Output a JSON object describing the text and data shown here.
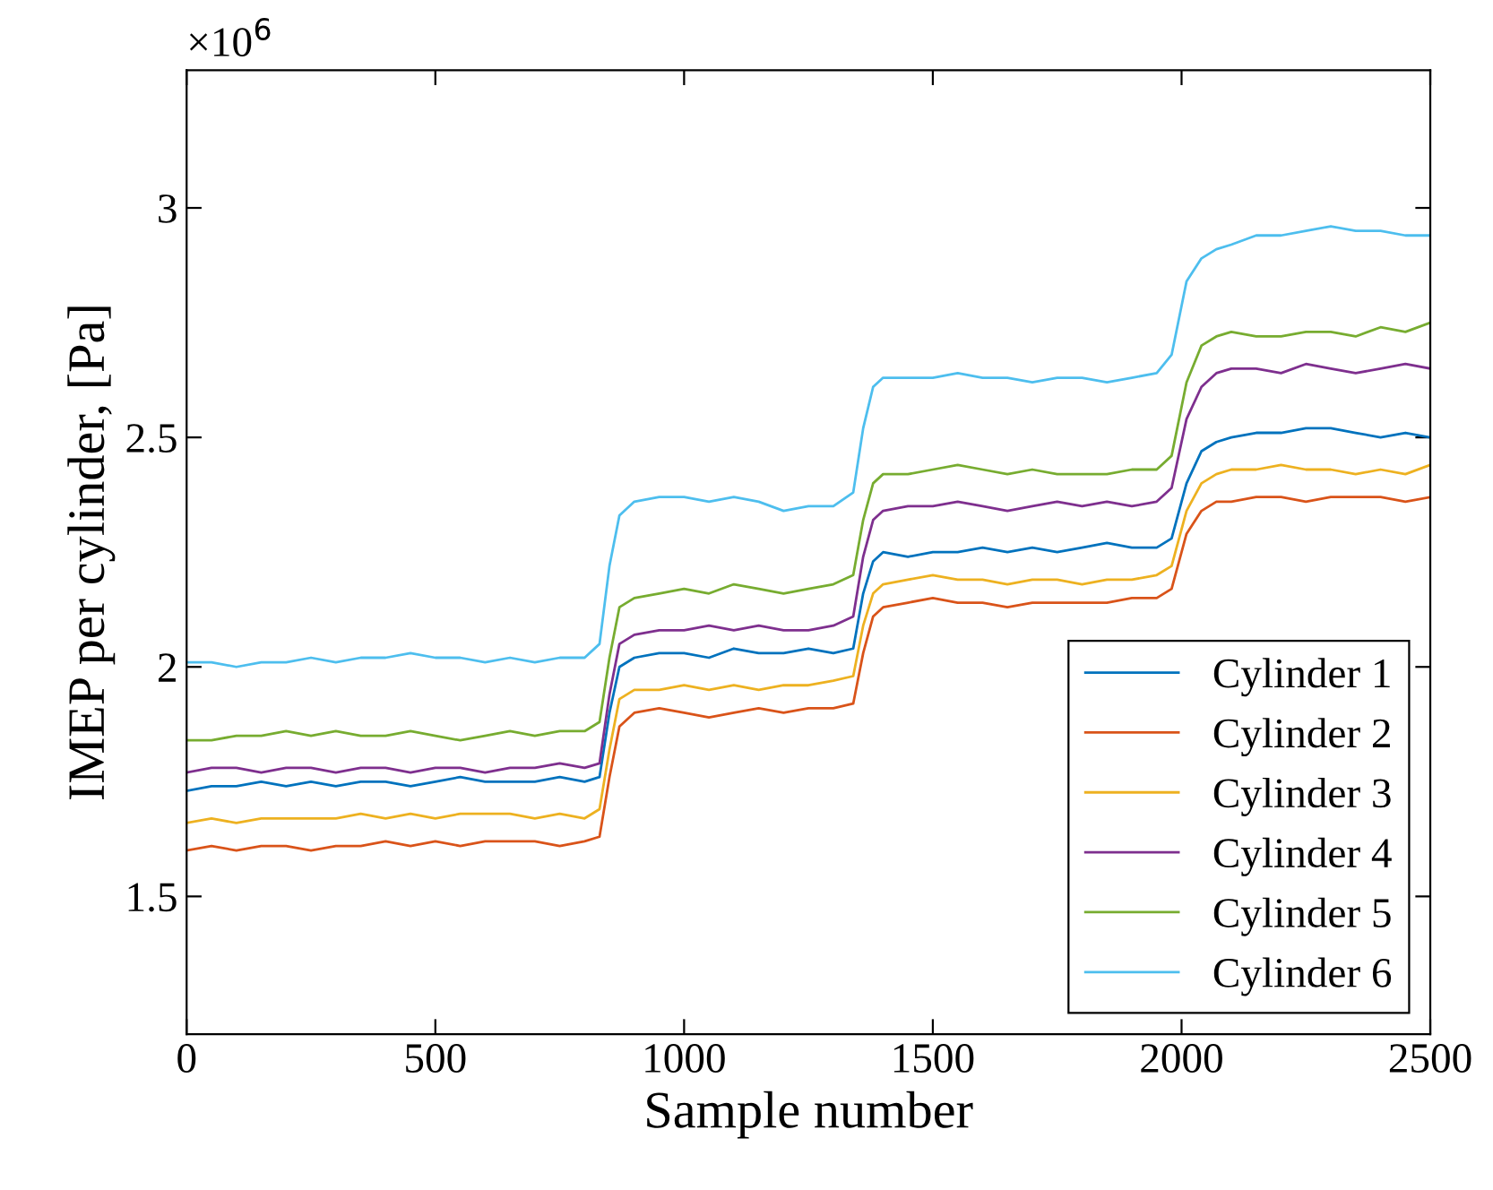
{
  "chart_data": {
    "type": "line",
    "xlabel": "Sample number",
    "ylabel": "IMEP per cylinder, [Pa]",
    "annotations": [
      "×10$^{6}$"
    ],
    "x": [
      0,
      50,
      100,
      150,
      200,
      250,
      300,
      350,
      400,
      450,
      500,
      550,
      600,
      650,
      700,
      750,
      800,
      830,
      850,
      870,
      900,
      950,
      1000,
      1050,
      1100,
      1150,
      1200,
      1250,
      1300,
      1340,
      1360,
      1380,
      1400,
      1450,
      1500,
      1550,
      1600,
      1650,
      1700,
      1750,
      1800,
      1850,
      1900,
      1950,
      1980,
      2010,
      2040,
      2070,
      2100,
      2150,
      2200,
      2250,
      2300,
      2350,
      2400,
      2450,
      2500
    ],
    "series": [
      {
        "name": "Cylinder 1",
        "color": "#0072bd",
        "values": [
          1.73,
          1.74,
          1.74,
          1.75,
          1.74,
          1.75,
          1.74,
          1.75,
          1.75,
          1.74,
          1.75,
          1.76,
          1.75,
          1.75,
          1.75,
          1.76,
          1.75,
          1.76,
          1.9,
          2.0,
          2.02,
          2.03,
          2.03,
          2.02,
          2.04,
          2.03,
          2.03,
          2.04,
          2.03,
          2.04,
          2.16,
          2.23,
          2.25,
          2.24,
          2.25,
          2.25,
          2.26,
          2.25,
          2.26,
          2.25,
          2.26,
          2.27,
          2.26,
          2.26,
          2.28,
          2.4,
          2.47,
          2.49,
          2.5,
          2.51,
          2.51,
          2.52,
          2.52,
          2.51,
          2.5,
          2.51,
          2.5
        ]
      },
      {
        "name": "Cylinder 2",
        "color": "#d95319",
        "values": [
          1.6,
          1.61,
          1.6,
          1.61,
          1.61,
          1.6,
          1.61,
          1.61,
          1.62,
          1.61,
          1.62,
          1.61,
          1.62,
          1.62,
          1.62,
          1.61,
          1.62,
          1.63,
          1.76,
          1.87,
          1.9,
          1.91,
          1.9,
          1.89,
          1.9,
          1.91,
          1.9,
          1.91,
          1.91,
          1.92,
          2.03,
          2.11,
          2.13,
          2.14,
          2.15,
          2.14,
          2.14,
          2.13,
          2.14,
          2.14,
          2.14,
          2.14,
          2.15,
          2.15,
          2.17,
          2.29,
          2.34,
          2.36,
          2.36,
          2.37,
          2.37,
          2.36,
          2.37,
          2.37,
          2.37,
          2.36,
          2.37
        ]
      },
      {
        "name": "Cylinder 3",
        "color": "#edb120",
        "values": [
          1.66,
          1.67,
          1.66,
          1.67,
          1.67,
          1.67,
          1.67,
          1.68,
          1.67,
          1.68,
          1.67,
          1.68,
          1.68,
          1.68,
          1.67,
          1.68,
          1.67,
          1.69,
          1.82,
          1.93,
          1.95,
          1.95,
          1.96,
          1.95,
          1.96,
          1.95,
          1.96,
          1.96,
          1.97,
          1.98,
          2.09,
          2.16,
          2.18,
          2.19,
          2.2,
          2.19,
          2.19,
          2.18,
          2.19,
          2.19,
          2.18,
          2.19,
          2.19,
          2.2,
          2.22,
          2.34,
          2.4,
          2.42,
          2.43,
          2.43,
          2.44,
          2.43,
          2.43,
          2.42,
          2.43,
          2.42,
          2.44
        ]
      },
      {
        "name": "Cylinder 4",
        "color": "#7e2f8e",
        "values": [
          1.77,
          1.78,
          1.78,
          1.77,
          1.78,
          1.78,
          1.77,
          1.78,
          1.78,
          1.77,
          1.78,
          1.78,
          1.77,
          1.78,
          1.78,
          1.79,
          1.78,
          1.79,
          1.94,
          2.05,
          2.07,
          2.08,
          2.08,
          2.09,
          2.08,
          2.09,
          2.08,
          2.08,
          2.09,
          2.11,
          2.24,
          2.32,
          2.34,
          2.35,
          2.35,
          2.36,
          2.35,
          2.34,
          2.35,
          2.36,
          2.35,
          2.36,
          2.35,
          2.36,
          2.39,
          2.54,
          2.61,
          2.64,
          2.65,
          2.65,
          2.64,
          2.66,
          2.65,
          2.64,
          2.65,
          2.66,
          2.65
        ]
      },
      {
        "name": "Cylinder 5",
        "color": "#77ac30",
        "values": [
          1.84,
          1.84,
          1.85,
          1.85,
          1.86,
          1.85,
          1.86,
          1.85,
          1.85,
          1.86,
          1.85,
          1.84,
          1.85,
          1.86,
          1.85,
          1.86,
          1.86,
          1.88,
          2.02,
          2.13,
          2.15,
          2.16,
          2.17,
          2.16,
          2.18,
          2.17,
          2.16,
          2.17,
          2.18,
          2.2,
          2.32,
          2.4,
          2.42,
          2.42,
          2.43,
          2.44,
          2.43,
          2.42,
          2.43,
          2.42,
          2.42,
          2.42,
          2.43,
          2.43,
          2.46,
          2.62,
          2.7,
          2.72,
          2.73,
          2.72,
          2.72,
          2.73,
          2.73,
          2.72,
          2.74,
          2.73,
          2.75
        ]
      },
      {
        "name": "Cylinder 6",
        "color": "#4dbeee",
        "values": [
          2.01,
          2.01,
          2.0,
          2.01,
          2.01,
          2.02,
          2.01,
          2.02,
          2.02,
          2.03,
          2.02,
          2.02,
          2.01,
          2.02,
          2.01,
          2.02,
          2.02,
          2.05,
          2.22,
          2.33,
          2.36,
          2.37,
          2.37,
          2.36,
          2.37,
          2.36,
          2.34,
          2.35,
          2.35,
          2.38,
          2.52,
          2.61,
          2.63,
          2.63,
          2.63,
          2.64,
          2.63,
          2.63,
          2.62,
          2.63,
          2.63,
          2.62,
          2.63,
          2.64,
          2.68,
          2.84,
          2.89,
          2.91,
          2.92,
          2.94,
          2.94,
          2.95,
          2.96,
          2.95,
          2.95,
          2.94,
          2.94
        ]
      }
    ],
    "xlim": [
      0,
      2500
    ],
    "xticks": [
      0,
      500,
      1000,
      1500,
      2000,
      2500
    ],
    "ylim": [
      1.2,
      3.3
    ],
    "yticks": [
      1.5,
      2,
      2.5,
      3
    ],
    "grid": false,
    "legend": "bottom right",
    "line_style": "solid",
    "marker": "none"
  }
}
